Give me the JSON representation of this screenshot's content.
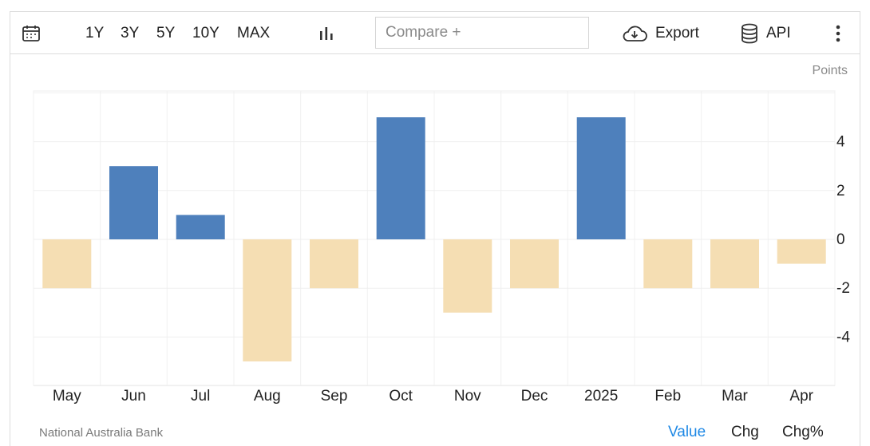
{
  "toolbar": {
    "ranges": [
      "1Y",
      "3Y",
      "5Y",
      "10Y",
      "MAX"
    ],
    "compare_placeholder": "Compare +",
    "export_label": "Export",
    "api_label": "API"
  },
  "units": "Points",
  "source": "National Australia Bank",
  "view_tabs": {
    "value": "Value",
    "chg": "Chg",
    "chg_pct": "Chg%"
  },
  "colors": {
    "positive": "#4e80bc",
    "negative": "#f5deb3",
    "active_tab": "#1e88e5"
  },
  "chart_data": {
    "type": "bar",
    "categories": [
      "May",
      "Jun",
      "Jul",
      "Aug",
      "Sep",
      "Oct",
      "Nov",
      "Dec",
      "2025",
      "Feb",
      "Mar",
      "Apr"
    ],
    "values": [
      -2,
      3,
      1,
      -5,
      -2,
      5,
      -3,
      -2,
      5,
      -2,
      -2,
      -1
    ],
    "ylabel": "Points",
    "yticks": [
      4,
      2,
      0,
      -2,
      -4
    ],
    "ylim": [
      -6,
      6
    ],
    "grid": true
  }
}
